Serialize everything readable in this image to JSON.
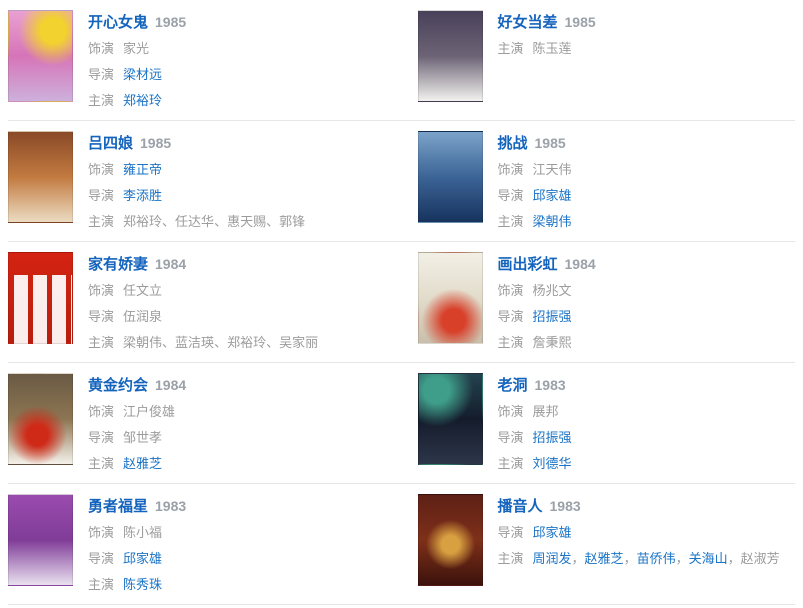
{
  "palette": {
    "background": "#ffffff",
    "divider": "#e6e6e6",
    "title_blue": "#1464bd",
    "link_blue": "#1a73c6",
    "year_gray": "#9aa1a9",
    "label_gray": "#9c9c9c",
    "name_gray": "#9c9c9c"
  },
  "movies": [
    {
      "title": "开心女鬼",
      "year": "1985",
      "poster": {
        "name": "kaixin-nvgui-poster",
        "colors": [
          "#e9a0d2",
          "#d674b8",
          "#cdb0dc"
        ],
        "accent": "#f2d22e",
        "accent_pos": "70% 22%"
      },
      "credits": [
        {
          "label": "饰演",
          "names": [
            {
              "text": "家光",
              "link": false
            }
          ]
        },
        {
          "label": "导演",
          "names": [
            {
              "text": "梁材远",
              "link": true
            }
          ]
        },
        {
          "label": "主演",
          "names": [
            {
              "text": "郑裕玲",
              "link": true
            }
          ]
        }
      ]
    },
    {
      "title": "好女当差",
      "year": "1985",
      "poster": {
        "name": "haonv-dangchai-poster",
        "colors": [
          "#49415a",
          "#6c6375",
          "#f3f2ef"
        ]
      },
      "credits": [
        {
          "label": "主演",
          "names": [
            {
              "text": "陈玉莲",
              "link": false
            }
          ]
        }
      ]
    },
    {
      "title": "吕四娘",
      "year": "1985",
      "poster": {
        "name": "lvsiniang-poster",
        "colors": [
          "#8a4a28",
          "#c27a40",
          "#ecdcc2"
        ]
      },
      "credits": [
        {
          "label": "饰演",
          "names": [
            {
              "text": "雍正帝",
              "link": true
            }
          ]
        },
        {
          "label": "导演",
          "names": [
            {
              "text": "李添胜",
              "link": true
            }
          ]
        },
        {
          "label": "主演",
          "sep": "、",
          "names": [
            {
              "text": "郑裕玲",
              "link": false
            },
            {
              "text": "任达华",
              "link": false
            },
            {
              "text": "惠天赐",
              "link": false
            },
            {
              "text": "郭锋",
              "link": false
            }
          ]
        }
      ]
    },
    {
      "title": "挑战",
      "year": "1985",
      "poster": {
        "name": "tiaozhan-poster",
        "colors": [
          "#7ba3c9",
          "#3c6496",
          "#17335e"
        ]
      },
      "credits": [
        {
          "label": "饰演",
          "names": [
            {
              "text": "江天伟",
              "link": false
            }
          ]
        },
        {
          "label": "导演",
          "names": [
            {
              "text": "邱家雄",
              "link": true
            }
          ]
        },
        {
          "label": "主演",
          "names": [
            {
              "text": "梁朝伟",
              "link": true
            }
          ]
        }
      ]
    },
    {
      "title": "家有娇妻",
      "year": "1984",
      "poster": {
        "name": "jiayou-jiaoqi-poster",
        "colors": [
          "#d42312",
          "#c7200f",
          "#b81d0d"
        ],
        "pattern": "stripes"
      },
      "credits": [
        {
          "label": "饰演",
          "names": [
            {
              "text": "任文立",
              "link": false
            }
          ]
        },
        {
          "label": "导演",
          "names": [
            {
              "text": "伍润泉",
              "link": false
            }
          ]
        },
        {
          "label": "主演",
          "sep": "、",
          "names": [
            {
              "text": "梁朝伟",
              "link": false
            },
            {
              "text": "蓝洁瑛",
              "link": false
            },
            {
              "text": "郑裕玲",
              "link": false
            },
            {
              "text": "吴家丽",
              "link": false
            }
          ]
        }
      ]
    },
    {
      "title": "画出彩虹",
      "year": "1984",
      "poster": {
        "name": "huachu-caihong-poster",
        "colors": [
          "#f2efe6",
          "#e2dccb",
          "#c9bfab"
        ],
        "accent": "#d8402a",
        "accent_pos": "55% 75%"
      },
      "credits": [
        {
          "label": "饰演",
          "names": [
            {
              "text": "杨兆文",
              "link": false
            }
          ]
        },
        {
          "label": "导演",
          "names": [
            {
              "text": "招振强",
              "link": true
            }
          ]
        },
        {
          "label": "主演",
          "names": [
            {
              "text": "詹秉熙",
              "link": false
            }
          ]
        }
      ]
    },
    {
      "title": "黄金约会",
      "year": "1984",
      "poster": {
        "name": "huangjin-yuehui-poster",
        "colors": [
          "#6a5a44",
          "#8c7552",
          "#f5f2ea"
        ],
        "accent": "#cf2a18",
        "accent_pos": "45% 68%"
      },
      "credits": [
        {
          "label": "饰演",
          "names": [
            {
              "text": "江户俊雄",
              "link": false
            }
          ]
        },
        {
          "label": "导演",
          "names": [
            {
              "text": "邹世孝",
              "link": false
            }
          ]
        },
        {
          "label": "主演",
          "names": [
            {
              "text": "赵雅芝",
              "link": true
            }
          ]
        }
      ]
    },
    {
      "title": "老洞",
      "year": "1983",
      "poster": {
        "name": "laodong-poster",
        "colors": [
          "#24424e",
          "#141c2c",
          "#2d3549"
        ],
        "accent": "#3f9e8a",
        "accent_pos": "28% 18%"
      },
      "credits": [
        {
          "label": "饰演",
          "names": [
            {
              "text": "展邦",
              "link": false
            }
          ]
        },
        {
          "label": "导演",
          "names": [
            {
              "text": "招振强",
              "link": true
            }
          ]
        },
        {
          "label": "主演",
          "names": [
            {
              "text": "刘德华",
              "link": true
            }
          ]
        }
      ]
    },
    {
      "title": "勇者福星",
      "year": "1983",
      "poster": {
        "name": "yongzhe-fuxing-poster",
        "colors": [
          "#9a4cae",
          "#803c98",
          "#e9e1ef"
        ]
      },
      "credits": [
        {
          "label": "饰演",
          "names": [
            {
              "text": "陈小福",
              "link": false
            }
          ]
        },
        {
          "label": "导演",
          "names": [
            {
              "text": "邱家雄",
              "link": true
            }
          ]
        },
        {
          "label": "主演",
          "names": [
            {
              "text": "陈秀珠",
              "link": true
            }
          ]
        }
      ]
    },
    {
      "title": "播音人",
      "year": "1983",
      "poster": {
        "name": "boyinren-poster",
        "colors": [
          "#5e2016",
          "#7e3019",
          "#3c120c"
        ],
        "accent": "#d8a040",
        "accent_pos": "50% 55%"
      },
      "credits": [
        {
          "label": "导演",
          "names": [
            {
              "text": "邱家雄",
              "link": true
            }
          ]
        },
        {
          "label": "主演",
          "sep": "，",
          "names": [
            {
              "text": "周润发",
              "link": true
            },
            {
              "text": "赵雅芝",
              "link": true
            },
            {
              "text": "苗侨伟",
              "link": true
            },
            {
              "text": "关海山",
              "link": true
            },
            {
              "text": "赵淑芳",
              "link": false
            }
          ]
        }
      ]
    }
  ]
}
